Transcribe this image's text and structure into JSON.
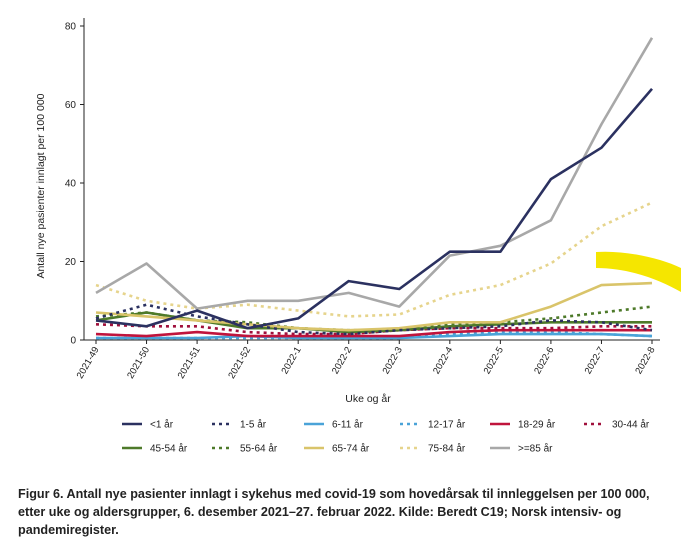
{
  "chart_data": {
    "type": "line",
    "xlabel": "Uke og år",
    "ylabel": "Antall nye pasienter innlagt per 100 000",
    "ylim": [
      0,
      80
    ],
    "yticks": [
      0,
      20,
      40,
      60,
      80
    ],
    "grid": false,
    "legend_placement": "bottom",
    "categories": [
      "2021-49",
      "2021-50",
      "2021-51",
      "2021-52",
      "2022-1",
      "2022-2",
      "2022-3",
      "2022-4",
      "2022-5",
      "2022-6",
      "2022-7",
      "2022-8"
    ],
    "series": [
      {
        "name": "<1 år",
        "color": "#2b3160",
        "dash": "solid",
        "values": [
          5,
          3.5,
          7.5,
          3,
          5.5,
          15,
          13,
          22.5,
          22.5,
          41,
          49,
          64
        ]
      },
      {
        "name": "1-5 år",
        "color": "#2b3160",
        "dash": "dotted",
        "values": [
          5.5,
          9,
          6,
          4,
          2,
          1.5,
          2.5,
          3,
          3.5,
          5,
          4.5,
          2.5
        ]
      },
      {
        "name": "6-11 år",
        "color": "#4aa3d8",
        "dash": "solid",
        "values": [
          0.5,
          0.5,
          0.5,
          1,
          0.5,
          0.5,
          0.5,
          1,
          1.5,
          1.5,
          1.5,
          1
        ]
      },
      {
        "name": "12-17 år",
        "color": "#4aa3d8",
        "dash": "dotted",
        "values": [
          0.5,
          0.5,
          0.5,
          0.5,
          0.5,
          0.5,
          0.5,
          1.5,
          2,
          2,
          1.5,
          1
        ]
      },
      {
        "name": "18-29 år",
        "color": "#c0143c",
        "dash": "solid",
        "values": [
          1.5,
          1,
          2,
          1,
          1,
          1,
          1,
          2,
          2.5,
          2.5,
          2.5,
          2.5
        ]
      },
      {
        "name": "30-44 år",
        "color": "#a0103c",
        "dash": "dotted",
        "values": [
          4,
          3.5,
          3.5,
          2,
          1.5,
          1.5,
          2.5,
          3,
          3,
          3,
          3.5,
          3.5
        ]
      },
      {
        "name": "45-54 år",
        "color": "#4e7a2a",
        "dash": "solid",
        "values": [
          5,
          7,
          5,
          3,
          3,
          2,
          2.5,
          3.5,
          4,
          4.5,
          4.5,
          4.5
        ]
      },
      {
        "name": "55-64 år",
        "color": "#4e7a2a",
        "dash": "dotted",
        "values": [
          6,
          7,
          5,
          4.5,
          3,
          2.5,
          2.5,
          4,
          4.5,
          5.5,
          7,
          8.5
        ]
      },
      {
        "name": "65-74 år",
        "color": "#d9c46a",
        "dash": "solid",
        "values": [
          7,
          6,
          5,
          4,
          3,
          2.5,
          3,
          4.5,
          4.5,
          8.5,
          14,
          14.5
        ]
      },
      {
        "name": "75-84 år",
        "color": "#e6d48c",
        "dash": "dotted",
        "values": [
          14,
          10,
          8,
          9,
          7.5,
          6,
          6.5,
          11.5,
          14,
          19.5,
          29,
          35
        ]
      },
      {
        "name": ">=85 år",
        "color": "#a8a8a8",
        "dash": "solid",
        "values": [
          12,
          19.5,
          8,
          10,
          10,
          12,
          8.5,
          21.5,
          24,
          30.5,
          55,
          77
        ]
      }
    ]
  },
  "caption": "Figur 6. Antall nye pasienter innlagt i sykehus med covid-19 som hovedårsak til innleggelsen per 100 000, etter uke og aldersgrupper, 6. desember 2021–27. februar 2022. Kilde: Beredt C19; Norsk intensiv- og pandemiregister.",
  "highlight_color": "#f5e600"
}
